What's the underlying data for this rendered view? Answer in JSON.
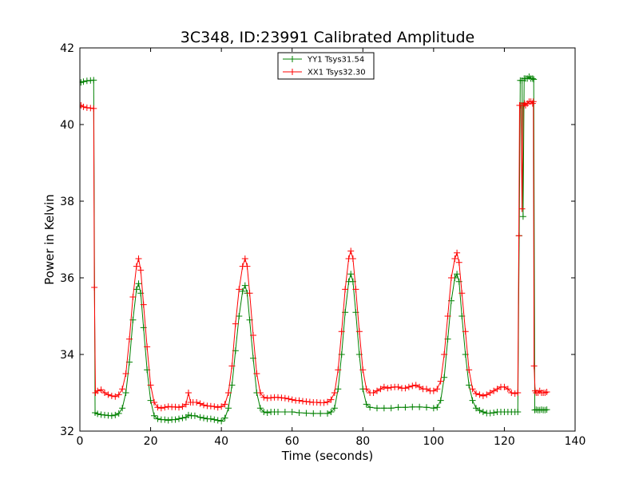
{
  "chart_data": {
    "type": "line",
    "title": "3C348, ID:23991 Calibrated Amplitude",
    "xlabel": "Time (seconds)",
    "ylabel": "Power in Kelvin",
    "xlim": [
      0,
      140
    ],
    "ylim": [
      32,
      42
    ],
    "xticks": [
      0,
      20,
      40,
      60,
      80,
      100,
      120,
      140
    ],
    "yticks": [
      32,
      34,
      36,
      38,
      40,
      42
    ],
    "grid": false,
    "legend_position": "top-center",
    "marker": "+",
    "series": [
      {
        "name": "YY1 Tsys31.54",
        "color": "#008000",
        "points": [
          [
            0.3,
            41.1
          ],
          [
            1,
            41.12
          ],
          [
            2,
            41.14
          ],
          [
            3,
            41.15
          ],
          [
            3.9,
            41.16
          ],
          [
            4.3,
            32.48
          ],
          [
            5,
            32.45
          ],
          [
            6,
            32.43
          ],
          [
            7,
            32.42
          ],
          [
            8,
            32.41
          ],
          [
            9,
            32.4
          ],
          [
            10,
            32.42
          ],
          [
            11,
            32.46
          ],
          [
            12,
            32.6
          ],
          [
            13,
            33.0
          ],
          [
            14,
            33.8
          ],
          [
            15,
            34.9
          ],
          [
            16,
            35.7
          ],
          [
            16.6,
            35.85
          ],
          [
            17.2,
            35.6
          ],
          [
            18,
            34.7
          ],
          [
            19,
            33.6
          ],
          [
            20,
            32.8
          ],
          [
            21,
            32.4
          ],
          [
            22,
            32.32
          ],
          [
            23,
            32.3
          ],
          [
            24,
            32.3
          ],
          [
            25,
            32.28
          ],
          [
            26,
            32.3
          ],
          [
            27,
            32.3
          ],
          [
            28,
            32.32
          ],
          [
            29,
            32.34
          ],
          [
            30,
            32.36
          ],
          [
            30.7,
            32.42
          ],
          [
            31.5,
            32.4
          ],
          [
            32.5,
            32.4
          ],
          [
            34,
            32.36
          ],
          [
            35,
            32.34
          ],
          [
            36,
            32.32
          ],
          [
            37,
            32.32
          ],
          [
            38,
            32.3
          ],
          [
            39,
            32.28
          ],
          [
            40,
            32.26
          ],
          [
            41,
            32.34
          ],
          [
            42,
            32.6
          ],
          [
            43,
            33.2
          ],
          [
            44,
            34.1
          ],
          [
            45,
            35.0
          ],
          [
            46,
            35.65
          ],
          [
            46.7,
            35.8
          ],
          [
            47.3,
            35.6
          ],
          [
            48,
            34.9
          ],
          [
            49,
            33.9
          ],
          [
            50,
            33.0
          ],
          [
            51,
            32.6
          ],
          [
            52,
            32.5
          ],
          [
            53,
            32.48
          ],
          [
            54,
            32.5
          ],
          [
            55,
            32.5
          ],
          [
            56,
            32.5
          ],
          [
            58,
            32.5
          ],
          [
            60,
            32.5
          ],
          [
            62,
            32.48
          ],
          [
            64,
            32.47
          ],
          [
            66,
            32.46
          ],
          [
            68,
            32.46
          ],
          [
            70,
            32.46
          ],
          [
            71,
            32.5
          ],
          [
            72,
            32.6
          ],
          [
            73,
            33.1
          ],
          [
            74,
            34.0
          ],
          [
            75,
            35.1
          ],
          [
            76,
            35.9
          ],
          [
            76.6,
            36.1
          ],
          [
            77.2,
            35.9
          ],
          [
            78,
            35.1
          ],
          [
            79,
            34.0
          ],
          [
            80,
            33.1
          ],
          [
            81,
            32.7
          ],
          [
            82,
            32.62
          ],
          [
            84,
            32.6
          ],
          [
            86,
            32.6
          ],
          [
            88,
            32.6
          ],
          [
            90,
            32.62
          ],
          [
            92,
            32.62
          ],
          [
            94,
            32.63
          ],
          [
            96,
            32.63
          ],
          [
            98,
            32.62
          ],
          [
            100,
            32.6
          ],
          [
            101,
            32.62
          ],
          [
            102,
            32.8
          ],
          [
            103,
            33.4
          ],
          [
            104,
            34.4
          ],
          [
            105,
            35.4
          ],
          [
            106,
            36.0
          ],
          [
            106.6,
            36.1
          ],
          [
            107.2,
            35.9
          ],
          [
            108,
            35.0
          ],
          [
            109,
            34.0
          ],
          [
            110,
            33.2
          ],
          [
            111,
            32.8
          ],
          [
            112,
            32.6
          ],
          [
            113,
            32.54
          ],
          [
            114,
            32.5
          ],
          [
            115,
            32.47
          ],
          [
            116,
            32.47
          ],
          [
            117,
            32.48
          ],
          [
            118,
            32.5
          ],
          [
            119,
            32.5
          ],
          [
            120,
            32.5
          ],
          [
            121,
            32.5
          ],
          [
            122,
            32.5
          ],
          [
            123,
            32.5
          ],
          [
            123.8,
            32.5
          ],
          [
            124.2,
            37.1
          ],
          [
            124.5,
            41.15
          ],
          [
            125,
            41.15
          ],
          [
            125.3,
            37.6
          ],
          [
            125.6,
            41.2
          ],
          [
            126,
            41.2
          ],
          [
            126.5,
            41.2
          ],
          [
            127,
            41.25
          ],
          [
            127.5,
            41.2
          ],
          [
            128,
            41.2
          ],
          [
            128.3,
            41.18
          ],
          [
            128.6,
            32.55
          ],
          [
            129,
            32.56
          ],
          [
            129.5,
            32.55
          ],
          [
            130,
            32.55
          ],
          [
            130.5,
            32.56
          ],
          [
            131,
            32.55
          ],
          [
            131.5,
            32.55
          ],
          [
            132,
            32.56
          ]
        ]
      },
      {
        "name": "XX1 Tsys32.30",
        "color": "#ff0000",
        "points": [
          [
            0.3,
            40.5
          ],
          [
            1,
            40.46
          ],
          [
            2,
            40.44
          ],
          [
            3,
            40.43
          ],
          [
            3.9,
            40.42
          ],
          [
            4.1,
            35.75
          ],
          [
            4.4,
            33.0
          ],
          [
            5,
            33.05
          ],
          [
            6,
            33.08
          ],
          [
            7,
            33.0
          ],
          [
            8,
            32.95
          ],
          [
            9,
            32.92
          ],
          [
            10,
            32.9
          ],
          [
            11,
            32.95
          ],
          [
            12,
            33.1
          ],
          [
            13,
            33.5
          ],
          [
            14,
            34.4
          ],
          [
            15,
            35.5
          ],
          [
            16,
            36.3
          ],
          [
            16.6,
            36.5
          ],
          [
            17.2,
            36.2
          ],
          [
            18,
            35.3
          ],
          [
            19,
            34.2
          ],
          [
            20,
            33.2
          ],
          [
            21,
            32.75
          ],
          [
            22,
            32.62
          ],
          [
            23,
            32.6
          ],
          [
            24,
            32.62
          ],
          [
            25,
            32.64
          ],
          [
            26,
            32.63
          ],
          [
            27,
            32.63
          ],
          [
            28,
            32.62
          ],
          [
            29,
            32.64
          ],
          [
            30,
            32.7
          ],
          [
            30.7,
            33.0
          ],
          [
            31.3,
            32.75
          ],
          [
            32,
            32.75
          ],
          [
            33,
            32.75
          ],
          [
            34,
            32.72
          ],
          [
            35,
            32.68
          ],
          [
            36,
            32.66
          ],
          [
            37,
            32.65
          ],
          [
            38,
            32.64
          ],
          [
            39,
            32.62
          ],
          [
            40,
            32.64
          ],
          [
            41,
            32.7
          ],
          [
            42,
            33.0
          ],
          [
            43,
            33.7
          ],
          [
            44,
            34.8
          ],
          [
            45,
            35.7
          ],
          [
            46,
            36.3
          ],
          [
            46.7,
            36.5
          ],
          [
            47.3,
            36.3
          ],
          [
            48,
            35.6
          ],
          [
            49,
            34.5
          ],
          [
            50,
            33.5
          ],
          [
            51,
            33.0
          ],
          [
            52,
            32.88
          ],
          [
            53,
            32.86
          ],
          [
            54,
            32.87
          ],
          [
            55,
            32.88
          ],
          [
            56,
            32.88
          ],
          [
            57,
            32.87
          ],
          [
            58,
            32.86
          ],
          [
            59,
            32.84
          ],
          [
            60,
            32.82
          ],
          [
            61,
            32.8
          ],
          [
            62,
            32.8
          ],
          [
            63,
            32.78
          ],
          [
            64,
            32.77
          ],
          [
            65,
            32.76
          ],
          [
            66,
            32.75
          ],
          [
            67,
            32.75
          ],
          [
            68,
            32.74
          ],
          [
            69,
            32.74
          ],
          [
            70,
            32.76
          ],
          [
            71,
            32.82
          ],
          [
            72,
            33.0
          ],
          [
            73,
            33.6
          ],
          [
            74,
            34.6
          ],
          [
            75,
            35.7
          ],
          [
            76,
            36.5
          ],
          [
            76.6,
            36.7
          ],
          [
            77.2,
            36.5
          ],
          [
            78,
            35.7
          ],
          [
            79,
            34.6
          ],
          [
            80,
            33.6
          ],
          [
            81,
            33.1
          ],
          [
            82,
            33.0
          ],
          [
            83,
            33.0
          ],
          [
            84,
            33.05
          ],
          [
            85,
            33.1
          ],
          [
            86,
            33.15
          ],
          [
            87,
            33.12
          ],
          [
            88,
            33.14
          ],
          [
            89,
            33.15
          ],
          [
            90,
            33.15
          ],
          [
            91,
            33.12
          ],
          [
            92,
            33.12
          ],
          [
            93,
            33.15
          ],
          [
            94,
            33.18
          ],
          [
            95,
            33.2
          ],
          [
            96,
            33.15
          ],
          [
            97,
            33.1
          ],
          [
            98,
            33.1
          ],
          [
            99,
            33.05
          ],
          [
            100,
            33.05
          ],
          [
            101,
            33.1
          ],
          [
            102,
            33.3
          ],
          [
            103,
            34.0
          ],
          [
            104,
            35.0
          ],
          [
            105,
            36.0
          ],
          [
            106,
            36.5
          ],
          [
            106.6,
            36.65
          ],
          [
            107.2,
            36.4
          ],
          [
            108,
            35.6
          ],
          [
            109,
            34.6
          ],
          [
            110,
            33.6
          ],
          [
            111,
            33.1
          ],
          [
            112,
            32.98
          ],
          [
            113,
            32.95
          ],
          [
            114,
            32.92
          ],
          [
            115,
            32.95
          ],
          [
            116,
            33.0
          ],
          [
            117,
            33.05
          ],
          [
            118,
            33.1
          ],
          [
            119,
            33.15
          ],
          [
            120,
            33.15
          ],
          [
            121,
            33.1
          ],
          [
            122,
            33.0
          ],
          [
            123,
            32.98
          ],
          [
            123.8,
            33.0
          ],
          [
            124.1,
            37.1
          ],
          [
            124.3,
            40.5
          ],
          [
            124.7,
            40.5
          ],
          [
            125,
            37.8
          ],
          [
            125.3,
            40.5
          ],
          [
            125.7,
            40.55
          ],
          [
            126,
            40.5
          ],
          [
            126.5,
            40.55
          ],
          [
            127,
            40.6
          ],
          [
            127.5,
            40.6
          ],
          [
            128,
            40.55
          ],
          [
            128.2,
            40.6
          ],
          [
            128.4,
            33.7
          ],
          [
            128.7,
            33.05
          ],
          [
            129,
            33.0
          ],
          [
            129.5,
            33.0
          ],
          [
            130,
            33.05
          ],
          [
            130.5,
            33.0
          ],
          [
            131,
            33.0
          ],
          [
            131.5,
            33.0
          ],
          [
            132,
            33.02
          ]
        ]
      }
    ]
  }
}
